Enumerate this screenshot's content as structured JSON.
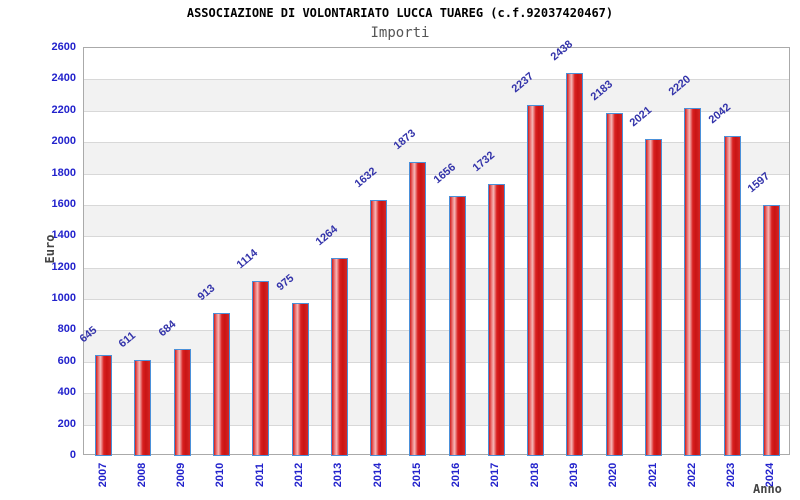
{
  "chart_data": {
    "type": "bar",
    "title": "ASSOCIAZIONE DI VOLONTARIATO LUCCA TUAREG (c.f.92037420467)",
    "subtitle": "Importi",
    "xlabel": "Anno",
    "ylabel": "Euro",
    "categories": [
      "2007",
      "2008",
      "2009",
      "2010",
      "2011",
      "2012",
      "2013",
      "2014",
      "2015",
      "2016",
      "2017",
      "2018",
      "2019",
      "2020",
      "2021",
      "2022",
      "2023",
      "2024"
    ],
    "values": [
      645,
      611,
      684,
      913,
      1114,
      975,
      1264,
      1632,
      1873,
      1656,
      1732,
      2237,
      2438,
      2183,
      2021,
      2220,
      2042,
      1597
    ],
    "ylim": [
      0,
      2600
    ],
    "ytick_step": 200,
    "yticks": [
      0,
      200,
      400,
      600,
      800,
      1000,
      1200,
      1400,
      1600,
      1800,
      2000,
      2200,
      2400,
      2600
    ],
    "grid": "horizontal gridlines with alternating gray bands",
    "legend_position": "none",
    "value_labels": "above bars, rotated 45deg",
    "x_tick_rotation": "vertical",
    "colors": {
      "bar_fill": "#d92020",
      "bar_fill_light": "#f6b9b9",
      "bar_border": "#4a90d9",
      "tick_label": "#2222cc",
      "value_label": "#3333aa",
      "title": "#000000",
      "subtitle": "#555555",
      "axis_title": "#444444",
      "band": "#f2f2f2",
      "gridline": "#d8d8d8",
      "plot_border": "#aaaaaa",
      "background": "#ffffff"
    }
  }
}
